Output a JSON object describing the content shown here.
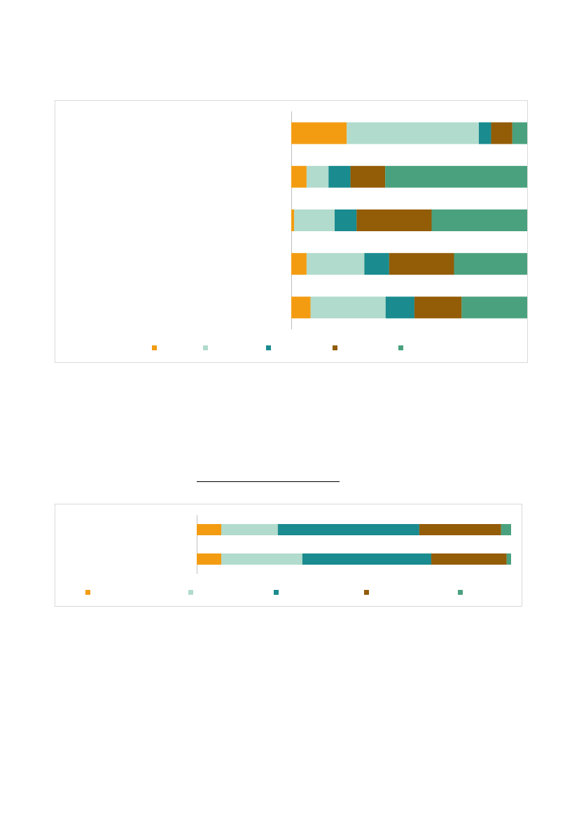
{
  "chart_data": [
    {
      "type": "bar",
      "orientation": "horizontal",
      "stacked": "percent",
      "categories": [
        "",
        "",
        "",
        "",
        ""
      ],
      "series": [
        {
          "color": "#F39C12",
          "values": [
            0.235,
            0.065,
            0.012,
            0.065,
            0.082
          ]
        },
        {
          "color": "#B1DBCC",
          "values": [
            0.56,
            0.093,
            0.172,
            0.245,
            0.318
          ]
        },
        {
          "color": "#1A8B8F",
          "values": [
            0.052,
            0.093,
            0.093,
            0.105,
            0.122
          ]
        },
        {
          "color": "#935C07",
          "values": [
            0.09,
            0.147,
            0.318,
            0.275,
            0.2
          ]
        },
        {
          "color": "#4AA17E",
          "values": [
            0.063,
            0.602,
            0.405,
            0.31,
            0.278
          ]
        }
      ],
      "xlim": [
        0,
        1
      ],
      "grid": false,
      "legend": "bottom"
    },
    {
      "type": "bar",
      "orientation": "horizontal",
      "stacked": "percent",
      "categories": [
        "",
        ""
      ],
      "series": [
        {
          "color": "#F39C12",
          "values": [
            0.078,
            0.078
          ]
        },
        {
          "color": "#B1DBCC",
          "values": [
            0.18,
            0.258
          ]
        },
        {
          "color": "#1A8B8F",
          "values": [
            0.45,
            0.41
          ]
        },
        {
          "color": "#935C07",
          "values": [
            0.26,
            0.24
          ]
        },
        {
          "color": "#4AA17E",
          "values": [
            0.032,
            0.014
          ]
        }
      ],
      "xlim": [
        0,
        1
      ],
      "grid": false,
      "legend": "bottom"
    }
  ]
}
